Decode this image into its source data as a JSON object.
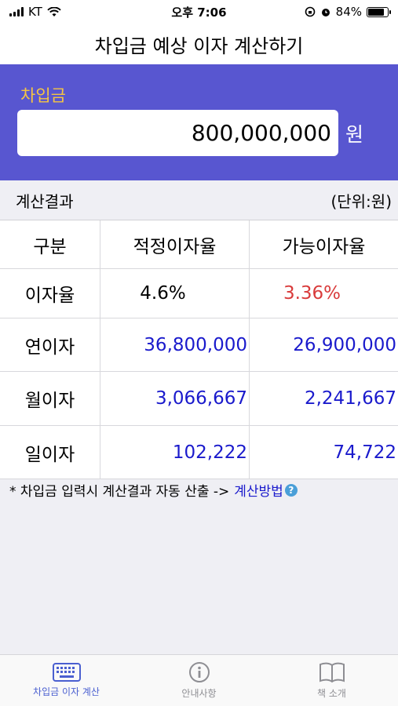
{
  "status_bar": {
    "carrier": "KT",
    "time": "오후 7:06",
    "battery": "84%",
    "battery_level": 0.84
  },
  "nav": {
    "title": "차입금 예상 이자 계산하기"
  },
  "input": {
    "label": "차입금",
    "value": "800,000,000",
    "unit": "원"
  },
  "result": {
    "title": "계산결과",
    "unit_note": "(단위:원)",
    "headers": [
      "구분",
      "적정이자율",
      "가능이자율"
    ],
    "rows": [
      {
        "label": "이자율",
        "proper": "4.6%",
        "possible": "3.36%"
      },
      {
        "label": "연이자",
        "proper": "36,800,000",
        "possible": "26,900,000"
      },
      {
        "label": "월이자",
        "proper": "3,066,667",
        "possible": "2,241,667"
      },
      {
        "label": "일이자",
        "proper": "102,222",
        "possible": "74,722"
      }
    ]
  },
  "footnote": {
    "text": "* 차입금 입력시 계산결과 자동 산출 ->",
    "link": "계산방법",
    "help": "?"
  },
  "tabs": [
    {
      "label": "차입금 이자 계산",
      "icon": "keyboard-icon",
      "active": true
    },
    {
      "label": "안내사항",
      "icon": "info-icon",
      "active": false
    },
    {
      "label": "책 소개",
      "icon": "book-icon",
      "active": false
    }
  ],
  "colors": {
    "accent": "#5856d0",
    "label_yellow": "#f5c542",
    "blue_value": "#1a1acc",
    "red_value": "#d93b3b"
  }
}
